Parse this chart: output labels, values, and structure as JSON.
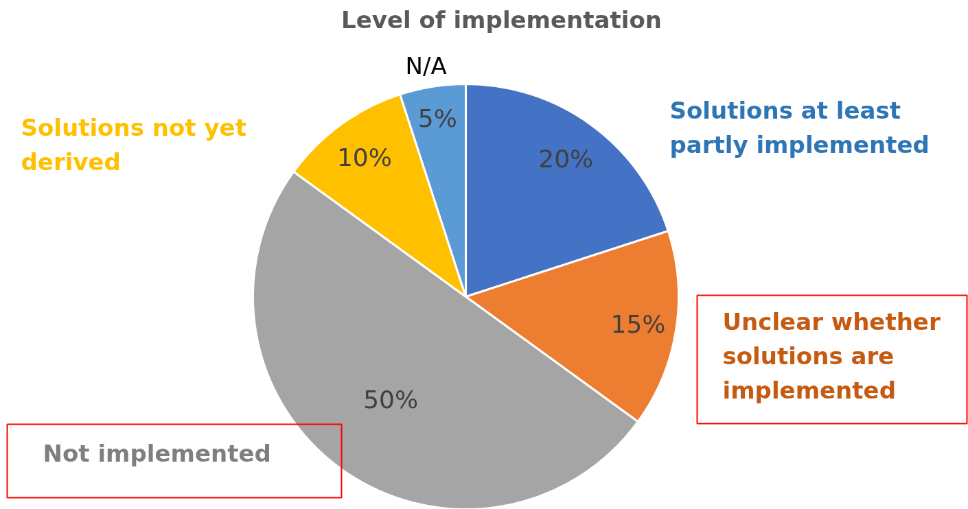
{
  "chart_data": {
    "type": "pie",
    "title": "Level of implementation",
    "categories": [
      "Solutions at least partly implemented",
      "Unclear whether solutions are implemented",
      "Not implemented",
      "Solutions not yet derived",
      "N/A"
    ],
    "values": [
      20,
      15,
      50,
      10,
      5
    ],
    "colors": [
      "#4472c4",
      "#ed7d31",
      "#a5a5a5",
      "#ffc000",
      "#5b9bd5"
    ],
    "value_labels": [
      "20%",
      "15%",
      "50%",
      "10%",
      "5%"
    ]
  }
}
